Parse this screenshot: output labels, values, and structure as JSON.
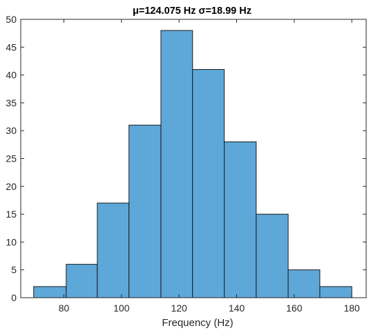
{
  "chart_data": {
    "type": "bar",
    "title": "μ=124.075 Hz  σ=18.99 Hz",
    "xlabel": "Frequency (Hz)",
    "ylabel": "",
    "bins": [
      {
        "x0": 69.5,
        "x1": 80.8,
        "count": 2
      },
      {
        "x0": 80.8,
        "x1": 91.6,
        "count": 6
      },
      {
        "x0": 91.6,
        "x1": 102.6,
        "count": 17
      },
      {
        "x0": 102.6,
        "x1": 113.7,
        "count": 31
      },
      {
        "x0": 113.7,
        "x1": 124.7,
        "count": 48
      },
      {
        "x0": 124.7,
        "x1": 135.7,
        "count": 41
      },
      {
        "x0": 135.7,
        "x1": 146.8,
        "count": 28
      },
      {
        "x0": 146.8,
        "x1": 157.9,
        "count": 15
      },
      {
        "x0": 157.9,
        "x1": 168.9,
        "count": 5
      },
      {
        "x0": 168.9,
        "x1": 180.0,
        "count": 2
      }
    ],
    "xlim": [
      65,
      185
    ],
    "ylim": [
      0,
      50
    ],
    "xticks": [
      80,
      100,
      120,
      140,
      160,
      180
    ],
    "yticks": [
      0,
      5,
      10,
      15,
      20,
      25,
      30,
      35,
      40,
      45,
      50
    ],
    "bar_color": "#5ea7d9",
    "edge_color": "#1a1a1a",
    "grid": false
  }
}
